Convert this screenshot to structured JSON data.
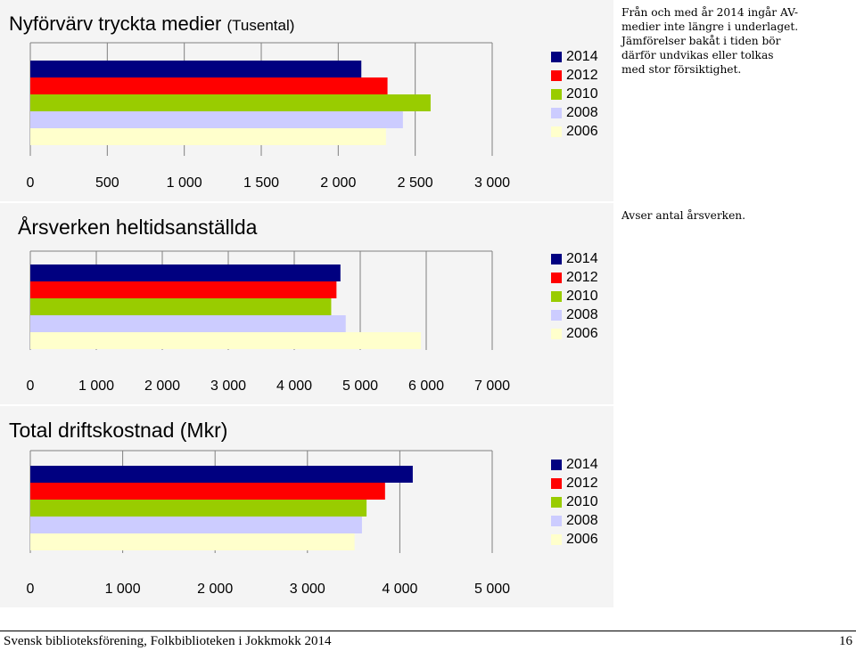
{
  "charts": [
    {
      "title": "Nyförvärv tryckta medier",
      "unit": "(Tusental)",
      "note": "Från och med år 2014 ingår AV-medier inte längre i underlaget. Jämförelser bakåt i tiden bör därför undvikas eller tolkas med stor försiktighet."
    },
    {
      "title": "Årsverken heltidsanställda",
      "note": "Avser antal årsverken."
    },
    {
      "title": "Total driftskostnad (Mkr)",
      "note": ""
    }
  ],
  "legend": [
    {
      "label": "2014",
      "color": "#000080"
    },
    {
      "label": "2012",
      "color": "#ff0000"
    },
    {
      "label": "2010",
      "color": "#99cc00"
    },
    {
      "label": "2008",
      "color": "#ccccff"
    },
    {
      "label": "2006",
      "color": "#ffffcc"
    }
  ],
  "chart_data": [
    {
      "type": "bar",
      "orientation": "horizontal",
      "title": "Nyförvärv tryckta medier (Tusental)",
      "series": [
        {
          "name": "2014",
          "values": [
            2150
          ]
        },
        {
          "name": "2012",
          "values": [
            2320
          ]
        },
        {
          "name": "2010",
          "values": [
            2600
          ]
        },
        {
          "name": "2008",
          "values": [
            2420
          ]
        },
        {
          "name": "2006",
          "values": [
            2310
          ]
        }
      ],
      "xlim": [
        0,
        3000
      ],
      "xticks": [
        0,
        500,
        1000,
        1500,
        2000,
        2500,
        3000
      ],
      "xtick_labels": [
        "0",
        "500",
        "1 000",
        "1 500",
        "2 000",
        "2 500",
        "3 000"
      ],
      "grid": true,
      "legend_position": "right"
    },
    {
      "type": "bar",
      "orientation": "horizontal",
      "title": "Årsverken heltidsanställda",
      "series": [
        {
          "name": "2014",
          "values": [
            4700
          ]
        },
        {
          "name": "2012",
          "values": [
            4640
          ]
        },
        {
          "name": "2010",
          "values": [
            4560
          ]
        },
        {
          "name": "2008",
          "values": [
            4780
          ]
        },
        {
          "name": "2006",
          "values": [
            5920
          ]
        }
      ],
      "xlim": [
        0,
        7000
      ],
      "xticks": [
        0,
        1000,
        2000,
        3000,
        4000,
        5000,
        6000,
        7000
      ],
      "xtick_labels": [
        "0",
        "1 000",
        "2 000",
        "3 000",
        "4 000",
        "5 000",
        "6 000",
        "7 000"
      ],
      "grid": true,
      "legend_position": "right"
    },
    {
      "type": "bar",
      "orientation": "horizontal",
      "title": "Total driftskostnad (Mkr)",
      "series": [
        {
          "name": "2014",
          "values": [
            4140
          ]
        },
        {
          "name": "2012",
          "values": [
            3840
          ]
        },
        {
          "name": "2010",
          "values": [
            3640
          ]
        },
        {
          "name": "2008",
          "values": [
            3590
          ]
        },
        {
          "name": "2006",
          "values": [
            3510
          ]
        }
      ],
      "xlim": [
        0,
        5000
      ],
      "xticks": [
        0,
        1000,
        2000,
        3000,
        4000,
        5000
      ],
      "xtick_labels": [
        "0",
        "1 000",
        "2 000",
        "3 000",
        "4 000",
        "5 000"
      ],
      "grid": true,
      "legend_position": "right"
    }
  ],
  "footer": {
    "source": "Svensk biblioteksförening, Folkbiblioteken i Jokkmokk 2014",
    "page_number": "16"
  }
}
